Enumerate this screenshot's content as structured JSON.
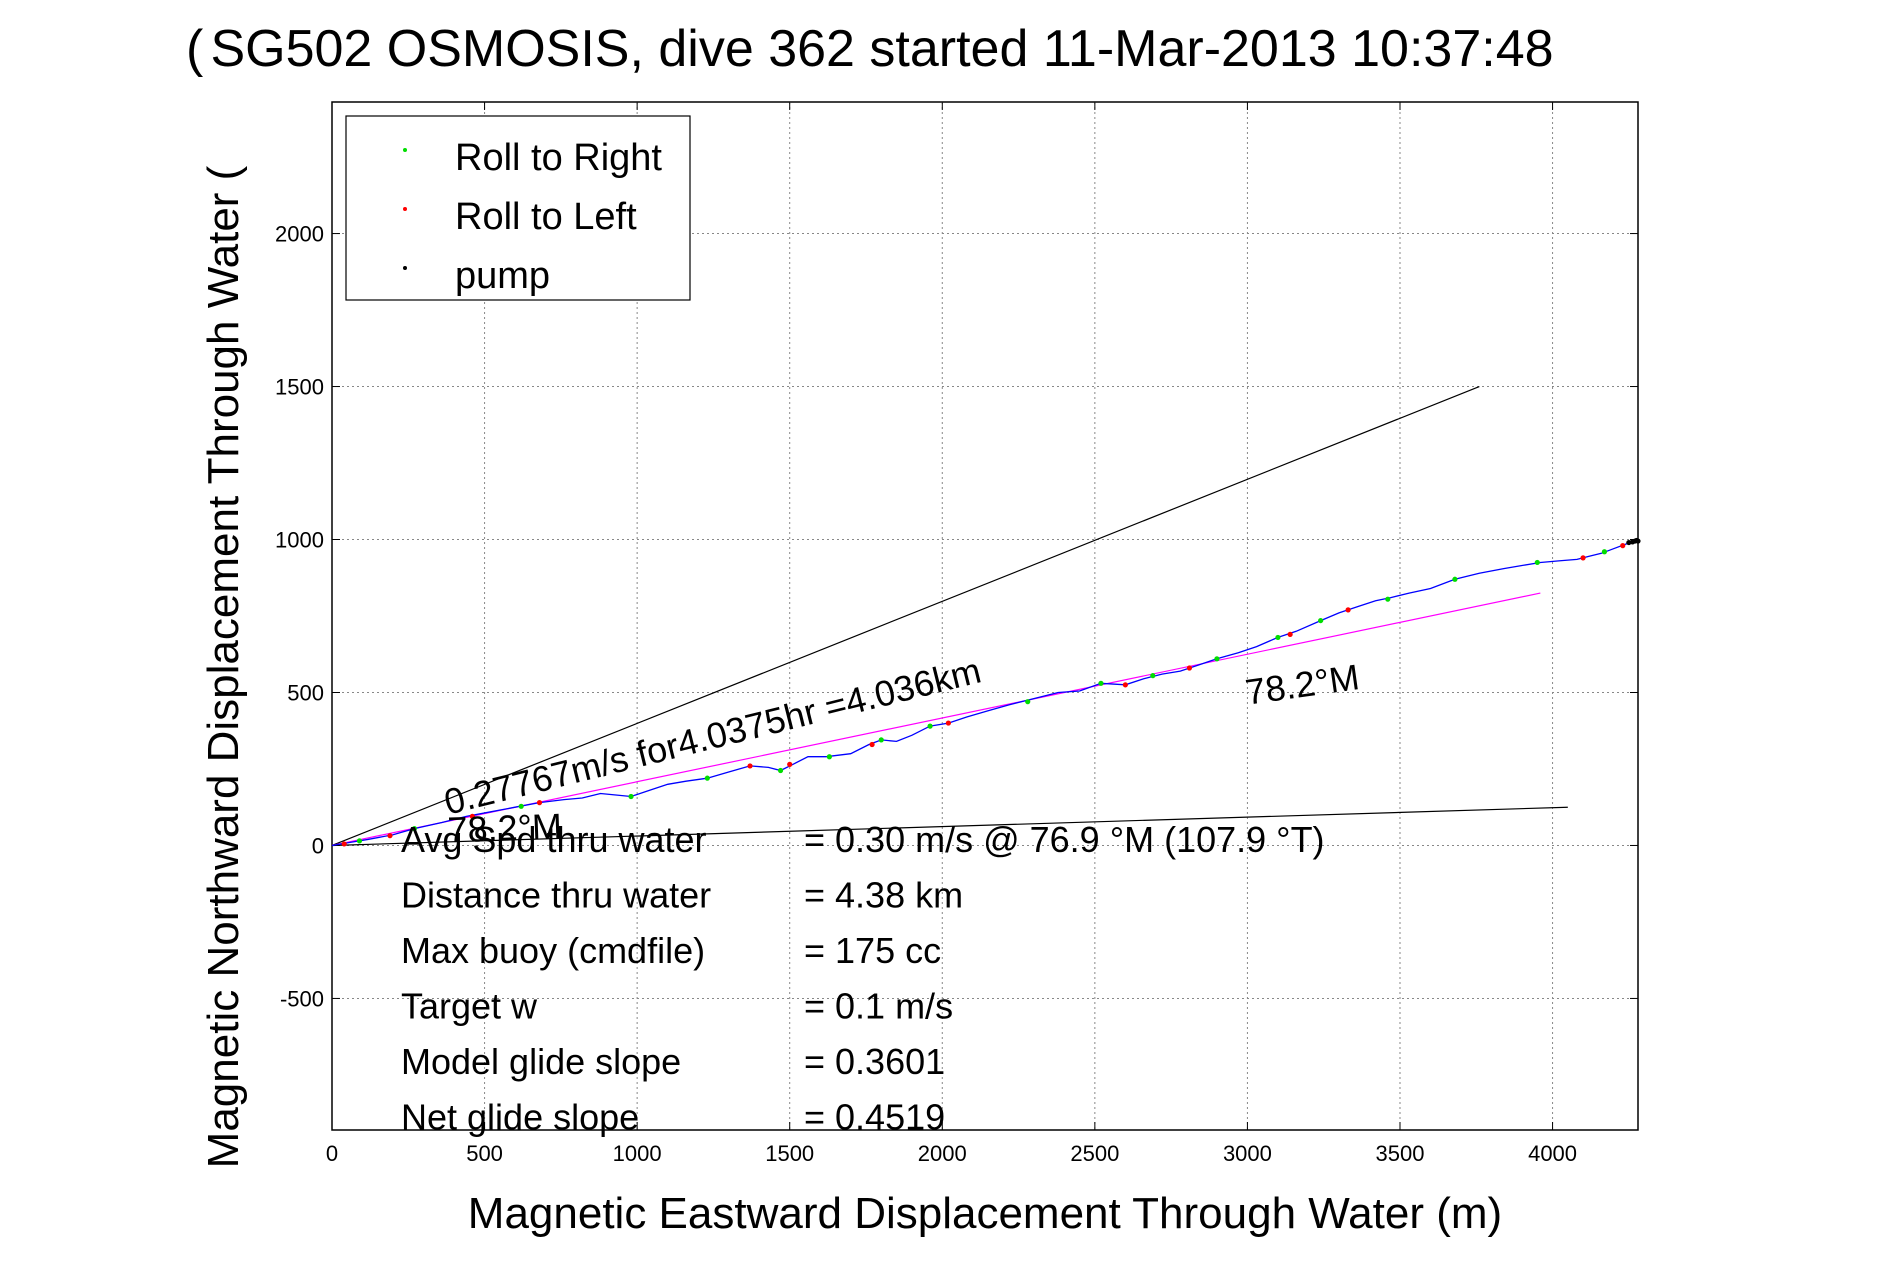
{
  "chart_data": {
    "type": "scatter",
    "title": "SG502 OSMOSIS, dive 362 started 11-Mar-2013 10:37:48",
    "title_overlap": "(",
    "xlabel": "Magnetic Eastward Displacement Through Water (m)",
    "ylabel": "Magnetic Northward Displacement Through Water (m)",
    "ylabel_visible": "Magnetic Northward Displacement Through Water (",
    "xlim": [
      0,
      4280
    ],
    "ylim": [
      -930,
      2430
    ],
    "xticks": [
      0,
      500,
      1000,
      1500,
      2000,
      2500,
      3000,
      3500,
      4000
    ],
    "yticks": [
      -500,
      0,
      500,
      1000,
      1500,
      2000
    ],
    "grid": true,
    "legend_position": "top-left",
    "legend": [
      {
        "name": "Roll to Right",
        "color": "#00dd00"
      },
      {
        "name": "Roll to Left",
        "color": "#ff0000"
      },
      {
        "name": "pump",
        "color": "#000000"
      }
    ],
    "colors": {
      "track": "#0000ff",
      "fit": "#ff00ff",
      "lines": "#000000",
      "grid": "#888888"
    },
    "track": [
      [
        0,
        0
      ],
      [
        60,
        10
      ],
      [
        120,
        20
      ],
      [
        200,
        35
      ],
      [
        270,
        55
      ],
      [
        360,
        75
      ],
      [
        440,
        95
      ],
      [
        520,
        110
      ],
      [
        600,
        125
      ],
      [
        680,
        140
      ],
      [
        760,
        150
      ],
      [
        820,
        155
      ],
      [
        880,
        170
      ],
      [
        930,
        165
      ],
      [
        980,
        160
      ],
      [
        1040,
        180
      ],
      [
        1100,
        200
      ],
      [
        1160,
        210
      ],
      [
        1230,
        220
      ],
      [
        1300,
        240
      ],
      [
        1370,
        260
      ],
      [
        1430,
        255
      ],
      [
        1470,
        245
      ],
      [
        1510,
        265
      ],
      [
        1560,
        290
      ],
      [
        1620,
        290
      ],
      [
        1700,
        300
      ],
      [
        1760,
        330
      ],
      [
        1800,
        345
      ],
      [
        1850,
        340
      ],
      [
        1900,
        360
      ],
      [
        1960,
        390
      ],
      [
        2020,
        400
      ],
      [
        2080,
        420
      ],
      [
        2150,
        440
      ],
      [
        2220,
        460
      ],
      [
        2300,
        480
      ],
      [
        2380,
        500
      ],
      [
        2450,
        505
      ],
      [
        2520,
        530
      ],
      [
        2600,
        525
      ],
      [
        2660,
        545
      ],
      [
        2720,
        560
      ],
      [
        2780,
        570
      ],
      [
        2840,
        590
      ],
      [
        2900,
        610
      ],
      [
        2970,
        630
      ],
      [
        3030,
        650
      ],
      [
        3100,
        680
      ],
      [
        3160,
        700
      ],
      [
        3240,
        735
      ],
      [
        3300,
        760
      ],
      [
        3360,
        780
      ],
      [
        3420,
        800
      ],
      [
        3470,
        810
      ],
      [
        3530,
        825
      ],
      [
        3600,
        840
      ],
      [
        3680,
        870
      ],
      [
        3760,
        890
      ],
      [
        3840,
        905
      ],
      [
        3900,
        915
      ],
      [
        3960,
        925
      ],
      [
        4020,
        930
      ],
      [
        4080,
        935
      ],
      [
        4120,
        945
      ],
      [
        4160,
        955
      ],
      [
        4200,
        970
      ],
      [
        4240,
        985
      ],
      [
        4270,
        995
      ],
      [
        4280,
        995
      ]
    ],
    "roll_right": [
      [
        90,
        15
      ],
      [
        270,
        55
      ],
      [
        620,
        128
      ],
      [
        980,
        160
      ],
      [
        1230,
        220
      ],
      [
        1470,
        245
      ],
      [
        1630,
        290
      ],
      [
        1800,
        345
      ],
      [
        1960,
        390
      ],
      [
        2280,
        470
      ],
      [
        2520,
        530
      ],
      [
        2690,
        555
      ],
      [
        2900,
        610
      ],
      [
        3100,
        680
      ],
      [
        3240,
        735
      ],
      [
        3460,
        805
      ],
      [
        3680,
        870
      ],
      [
        3950,
        925
      ],
      [
        4170,
        960
      ]
    ],
    "roll_left": [
      [
        40,
        5
      ],
      [
        190,
        32
      ],
      [
        460,
        95
      ],
      [
        680,
        140
      ],
      [
        1370,
        260
      ],
      [
        1500,
        265
      ],
      [
        1770,
        330
      ],
      [
        2020,
        400
      ],
      [
        2600,
        525
      ],
      [
        2810,
        580
      ],
      [
        3140,
        690
      ],
      [
        3330,
        770
      ],
      [
        4100,
        940
      ],
      [
        4230,
        980
      ]
    ],
    "pump": [
      [
        4250,
        990
      ],
      [
        4262,
        992
      ],
      [
        4270,
        995
      ],
      [
        4275,
        997
      ],
      [
        4280,
        995
      ]
    ],
    "heading_lines": [
      {
        "from": [
          0,
          0
        ],
        "to": [
          3760,
          1500
        ]
      },
      {
        "from": [
          0,
          0
        ],
        "to": [
          4050,
          125
        ]
      }
    ],
    "fit_line": {
      "from": [
        0,
        0
      ],
      "to": [
        3960,
        825
      ]
    },
    "annotations": [
      {
        "text": "0.27767m/s for4.0375hr =4.036km",
        "x": 380,
        "y": 100,
        "angle": -14
      },
      {
        "text": "78.2°M",
        "x": 3000,
        "y": 460,
        "angle": -8
      },
      {
        "text": "78.2°M",
        "x": 380,
        "y": 10,
        "angle": -2
      }
    ],
    "stats": [
      {
        "label": "Avg Spd thru water",
        "value": "=  0.30 m/s @  76.9 °M (107.9 °T)"
      },
      {
        "label": "Distance thru water",
        "value": "=  4.38 km"
      },
      {
        "label": "Max buoy (cmdfile)",
        "value": "= 175 cc"
      },
      {
        "label": "Target w",
        "value": "= 0.1 m/s"
      },
      {
        "label": "Model glide slope",
        "value": "= 0.3601"
      },
      {
        "label": "Net glide slope",
        "value": "= 0.4519"
      }
    ]
  }
}
